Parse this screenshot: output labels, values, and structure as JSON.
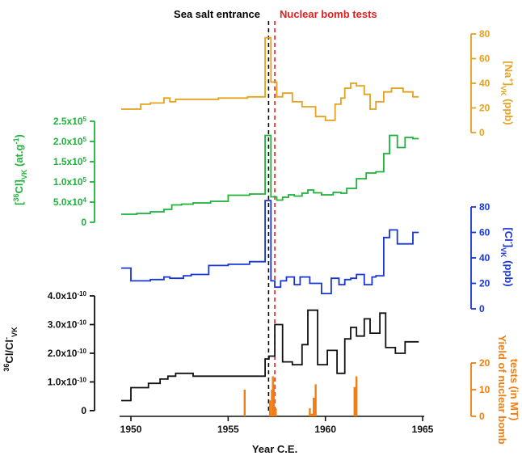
{
  "chart_data": {
    "type": "line",
    "x_axis": {
      "label": "Year C.E.",
      "range": [
        1949.5,
        1965
      ],
      "ticks": [
        "1950",
        "1955",
        "1960",
        "1965"
      ],
      "tick_values": [
        1950,
        1955,
        1960,
        1965
      ]
    },
    "annotations": [
      {
        "text": "Sea salt entrance",
        "x": 1957.08,
        "color": "#000000",
        "style": "dashed"
      },
      {
        "text": "Nuclear bomb tests",
        "x": 1957.4,
        "color": "#e02020",
        "style": "dashed"
      }
    ],
    "series": [
      {
        "key": "na",
        "axis_label_parts": [
          "[Na",
          "+",
          "]",
          "VK",
          " (ppb)"
        ],
        "color": "#e5a11f",
        "axis_side": "right",
        "range": [
          0,
          80
        ],
        "ticks": [
          "0",
          "20",
          "40",
          "60",
          "80"
        ],
        "tick_values": [
          0,
          20,
          40,
          60,
          80
        ],
        "x": [
          1949.5,
          1950.5,
          1951,
          1951.7,
          1952,
          1952.3,
          1953,
          1954.5,
          1956,
          1956.9,
          1957.2,
          1957.5,
          1957.8,
          1958.3,
          1958.8,
          1959.5,
          1960,
          1960.5,
          1960.8,
          1961,
          1961.3,
          1961.6,
          1962,
          1962.3,
          1962.6,
          1963,
          1963.4,
          1964,
          1964.5
        ],
        "y": [
          19,
          23,
          24,
          28,
          25,
          27,
          27,
          28,
          29,
          77,
          41,
          29,
          32,
          25,
          21,
          13,
          10,
          23,
          28,
          36,
          40,
          38,
          31,
          19,
          25,
          33,
          36,
          33,
          29
        ],
        "x_end": 1964.8
      },
      {
        "key": "cl36",
        "axis_label_parts": [
          "[",
          "36",
          "Cl]",
          "VK",
          " (at.g",
          "-1",
          ")"
        ],
        "color": "#1db33a",
        "axis_side": "left",
        "range": [
          0,
          250000
        ],
        "ticks": [
          "0",
          "5.0x10",
          "1.0x10",
          "1.5x10",
          "2.0x10",
          "2.5x10"
        ],
        "tick_exponents": [
          "",
          "4",
          "5",
          "5",
          "5",
          "5"
        ],
        "tick_values": [
          0,
          50000,
          100000,
          150000,
          200000,
          250000
        ],
        "x": [
          1949.5,
          1950.3,
          1951,
          1951.7,
          1952.1,
          1952.6,
          1953.2,
          1954.1,
          1955,
          1956.1,
          1956.9,
          1957.2,
          1957.5,
          1957.8,
          1958.1,
          1958.4,
          1958.8,
          1959.1,
          1959.4,
          1959.8,
          1960.4,
          1960.8,
          1961.1,
          1961.6,
          1962.1,
          1962.6,
          1963,
          1963.3,
          1963.7,
          1964.1,
          1964.5
        ],
        "y": [
          20000,
          22000,
          26000,
          32000,
          43000,
          45000,
          48000,
          52000,
          67000,
          70000,
          215000,
          63000,
          55000,
          62000,
          68000,
          65000,
          72000,
          80000,
          73000,
          68000,
          74000,
          72000,
          84000,
          108000,
          122000,
          125000,
          170000,
          215000,
          185000,
          210000,
          207000
        ],
        "x_end": 1964.8
      },
      {
        "key": "cl",
        "axis_label_parts": [
          "[Cl",
          "-",
          "]",
          "VK",
          " (ppb)"
        ],
        "color": "#1836d6",
        "axis_side": "right",
        "range": [
          0,
          80
        ],
        "ticks": [
          "0",
          "20",
          "40",
          "60",
          "80"
        ],
        "tick_values": [
          0,
          20,
          40,
          60,
          80
        ],
        "x": [
          1949.5,
          1950,
          1951,
          1951.7,
          1952,
          1952.7,
          1953.1,
          1954,
          1955,
          1956.1,
          1956.9,
          1957.2,
          1957.4,
          1957.7,
          1958,
          1958.4,
          1958.7,
          1959.2,
          1959.8,
          1960.3,
          1960.7,
          1961,
          1961.3,
          1961.6,
          1962,
          1962.4,
          1962.6,
          1963,
          1963.3,
          1963.7,
          1964.1,
          1964.5
        ],
        "y": [
          32,
          22,
          23,
          25,
          24,
          26,
          27,
          34,
          35,
          37,
          85,
          22,
          17,
          22,
          25,
          19,
          25,
          20,
          12,
          24,
          19,
          23,
          24,
          27,
          19,
          25,
          26,
          56,
          62,
          51,
          51,
          60
        ],
        "x_end": 1964.8
      },
      {
        "key": "ratio",
        "axis_label_parts": [
          "36",
          "Cl/Cl",
          "-",
          "VK"
        ],
        "color": "#111111",
        "axis_side": "left",
        "range": [
          -2e-11,
          4e-10
        ],
        "ticks": [
          "0",
          "1.0x10",
          "2.0x10",
          "3.0x10",
          "4.0x10"
        ],
        "tick_exponents": [
          "",
          "-10",
          "-10",
          "-10",
          "-10"
        ],
        "tick_values": [
          0,
          1e-10,
          2e-10,
          3e-10,
          4e-10
        ],
        "x": [
          1949.5,
          1950,
          1950.9,
          1951.5,
          1951.9,
          1952.3,
          1952.7,
          1953.2,
          1954.1,
          1955,
          1956.1,
          1956.9,
          1957.1,
          1957.4,
          1957.8,
          1958.3,
          1958.8,
          1959.1,
          1959.6,
          1960.1,
          1960.6,
          1961,
          1961.3,
          1961.6,
          1962,
          1962.3,
          1962.8,
          1963.1,
          1963.6,
          1964.1,
          1964.5
        ],
        "y": [
          3.5e-11,
          8e-11,
          9.5e-11,
          1.1e-10,
          1.2e-10,
          1.3e-10,
          1.3e-10,
          1.2e-10,
          1.2e-10,
          1.2e-10,
          1.2e-10,
          1.8e-10,
          1.9e-10,
          3e-10,
          1.7e-10,
          1.6e-10,
          2.3e-10,
          3.5e-10,
          1.6e-10,
          2.1e-10,
          1.3e-10,
          2.5e-10,
          2.9e-10,
          2.6e-10,
          3.2e-10,
          2.7e-10,
          3.4e-10,
          2.2e-10,
          2e-10,
          2.4e-10,
          2.4e-10
        ],
        "x_end": 1964.8
      },
      {
        "key": "bomb",
        "type": "bar",
        "axis_label_line1": "Yield of nuclear bomb",
        "axis_label_line2": "tests (in MT)",
        "color": "#f07e10",
        "axis_side": "right",
        "range": [
          0,
          20
        ],
        "ticks": [
          "0",
          "10",
          "20"
        ],
        "tick_values": [
          0,
          10,
          20
        ],
        "x": [
          1955.85,
          1957.15,
          1957.25,
          1957.3,
          1957.35,
          1957.45,
          1959.2,
          1959.3,
          1959.4,
          1959.5,
          1961.5,
          1961.55,
          1961.6
        ],
        "y": [
          10,
          6,
          10,
          15,
          12,
          3,
          3,
          1,
          7,
          12,
          11,
          10,
          15
        ]
      }
    ]
  }
}
